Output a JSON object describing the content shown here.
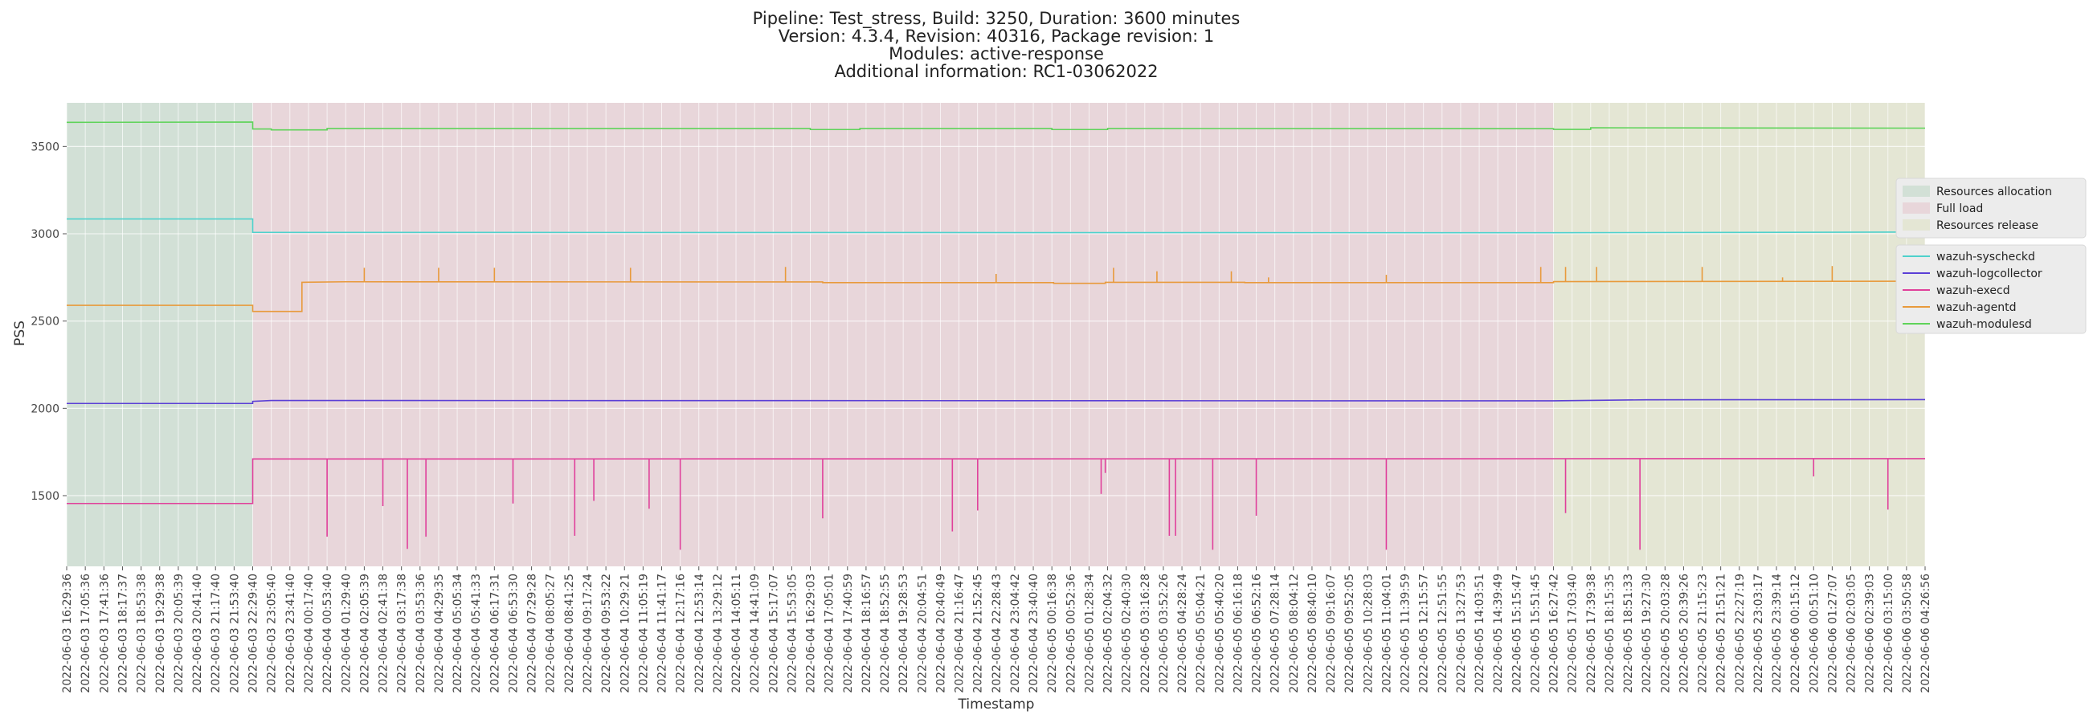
{
  "chart_data": {
    "type": "line",
    "title": [
      "Pipeline: Test_stress, Build: 3250, Duration: 3600 minutes",
      "Version: 4.3.4, Revision: 40316, Package revision: 1",
      "Modules: active-response",
      "Additional information: RC1-03062022"
    ],
    "xlabel": "Timestamp",
    "ylabel": "PSS",
    "ylim": [
      1095,
      3750
    ],
    "yticks": [
      1500,
      2000,
      2500,
      3000,
      3500
    ],
    "grid": true,
    "legend_placement": "right",
    "x_ticks": [
      "2022-06-03 16:29:36",
      "2022-06-03 17:05:36",
      "2022-06-03 17:41:36",
      "2022-06-03 18:17:37",
      "2022-06-03 18:53:38",
      "2022-06-03 19:29:38",
      "2022-06-03 20:05:39",
      "2022-06-03 20:41:40",
      "2022-06-03 21:17:40",
      "2022-06-03 21:53:40",
      "2022-06-03 22:29:40",
      "2022-06-03 23:05:40",
      "2022-06-03 23:41:40",
      "2022-06-04 00:17:40",
      "2022-06-04 00:53:40",
      "2022-06-04 01:29:40",
      "2022-06-04 02:05:39",
      "2022-06-04 02:41:38",
      "2022-06-04 03:17:38",
      "2022-06-04 03:53:36",
      "2022-06-04 04:29:35",
      "2022-06-04 05:05:34",
      "2022-06-04 05:41:33",
      "2022-06-04 06:17:31",
      "2022-06-04 06:53:30",
      "2022-06-04 07:29:28",
      "2022-06-04 08:05:27",
      "2022-06-04 08:41:25",
      "2022-06-04 09:17:24",
      "2022-06-04 09:53:22",
      "2022-06-04 10:29:21",
      "2022-06-04 11:05:19",
      "2022-06-04 11:41:17",
      "2022-06-04 12:17:16",
      "2022-06-04 12:53:14",
      "2022-06-04 13:29:12",
      "2022-06-04 14:05:11",
      "2022-06-04 14:41:09",
      "2022-06-04 15:17:07",
      "2022-06-04 15:53:05",
      "2022-06-04 16:29:03",
      "2022-06-04 17:05:01",
      "2022-06-04 17:40:59",
      "2022-06-04 18:16:57",
      "2022-06-04 18:52:55",
      "2022-06-04 19:28:53",
      "2022-06-04 20:04:51",
      "2022-06-04 20:40:49",
      "2022-06-04 21:16:47",
      "2022-06-04 21:52:45",
      "2022-06-04 22:28:43",
      "2022-06-04 23:04:42",
      "2022-06-04 23:40:40",
      "2022-06-05 00:16:38",
      "2022-06-05 00:52:36",
      "2022-06-05 01:28:34",
      "2022-06-05 02:04:32",
      "2022-06-05 02:40:30",
      "2022-06-05 03:16:28",
      "2022-06-05 03:52:26",
      "2022-06-05 04:28:24",
      "2022-06-05 05:04:21",
      "2022-06-05 05:40:20",
      "2022-06-05 06:16:18",
      "2022-06-05 06:52:16",
      "2022-06-05 07:28:14",
      "2022-06-05 08:04:12",
      "2022-06-05 08:40:10",
      "2022-06-05 09:16:07",
      "2022-06-05 09:52:05",
      "2022-06-05 10:28:03",
      "2022-06-05 11:04:01",
      "2022-06-05 11:39:59",
      "2022-06-05 12:15:57",
      "2022-06-05 12:51:55",
      "2022-06-05 13:27:53",
      "2022-06-05 14:03:51",
      "2022-06-05 14:39:49",
      "2022-06-05 15:15:47",
      "2022-06-05 15:51:45",
      "2022-06-05 16:27:42",
      "2022-06-05 17:03:40",
      "2022-06-05 17:39:38",
      "2022-06-05 18:15:35",
      "2022-06-05 18:51:33",
      "2022-06-05 19:27:30",
      "2022-06-05 20:03:28",
      "2022-06-05 20:39:26",
      "2022-06-05 21:15:23",
      "2022-06-05 21:51:21",
      "2022-06-05 22:27:19",
      "2022-06-05 23:03:17",
      "2022-06-05 23:39:14",
      "2022-06-06 00:15:12",
      "2022-06-06 00:51:10",
      "2022-06-06 01:27:07",
      "2022-06-06 02:03:05",
      "2022-06-06 02:39:03",
      "2022-06-06 03:15:00",
      "2022-06-06 03:50:58",
      "2022-06-06 04:26:56"
    ],
    "phases": [
      {
        "name": "Resources allocation",
        "start": "2022-06-03 16:29:36",
        "end": "2022-06-03 22:29:40",
        "color": "#d2e0d6"
      },
      {
        "name": "Full load",
        "start": "2022-06-03 22:29:40",
        "end": "2022-06-05 16:27:42",
        "color": "#e8d6da"
      },
      {
        "name": "Resources release",
        "start": "2022-06-05 16:27:42",
        "end": "2022-06-06 04:26:56",
        "color": "#e4e6d4"
      }
    ],
    "series": [
      {
        "name": "wazuh-syscheckd",
        "color": "#4fd1cc",
        "points": [
          [
            "2022-06-03 16:29:36",
            3085
          ],
          [
            "2022-06-03 22:29:40",
            3085
          ],
          [
            "2022-06-03 22:29:41",
            3008
          ],
          [
            "2022-06-05 16:27:42",
            3006
          ],
          [
            "2022-06-06 04:26:56",
            3010
          ]
        ],
        "spikes": []
      },
      {
        "name": "wazuh-logcollector",
        "color": "#5b3fd6",
        "points": [
          [
            "2022-06-03 16:29:36",
            2028
          ],
          [
            "2022-06-03 22:29:40",
            2028
          ],
          [
            "2022-06-03 22:29:41",
            2040
          ],
          [
            "2022-06-03 23:05:40",
            2045
          ],
          [
            "2022-06-05 16:27:42",
            2043
          ],
          [
            "2022-06-05 19:27:30",
            2049
          ],
          [
            "2022-06-06 04:26:56",
            2050
          ]
        ],
        "spikes": []
      },
      {
        "name": "wazuh-execd",
        "color": "#e0409b",
        "points": [
          [
            "2022-06-03 16:29:36",
            1455
          ],
          [
            "2022-06-03 22:29:40",
            1455
          ],
          [
            "2022-06-03 22:29:41",
            1710
          ],
          [
            "2022-06-06 04:26:56",
            1712
          ]
        ],
        "spikes": [
          [
            "2022-06-04 00:53:40",
            1265
          ],
          [
            "2022-06-04 02:41:38",
            1440
          ],
          [
            "2022-06-04 03:29:00",
            1195
          ],
          [
            "2022-06-04 04:05:00",
            1265
          ],
          [
            "2022-06-04 06:53:30",
            1455
          ],
          [
            "2022-06-04 08:53:00",
            1270
          ],
          [
            "2022-06-04 09:30:00",
            1470
          ],
          [
            "2022-06-04 11:17:00",
            1425
          ],
          [
            "2022-06-04 12:17:16",
            1190
          ],
          [
            "2022-06-04 16:53:00",
            1370
          ],
          [
            "2022-06-04 21:04:00",
            1295
          ],
          [
            "2022-06-04 21:53:00",
            1415
          ],
          [
            "2022-06-05 01:52:00",
            1510
          ],
          [
            "2022-06-05 02:00:00",
            1630
          ],
          [
            "2022-06-05 04:04:00",
            1270
          ],
          [
            "2022-06-05 04:16:00",
            1270
          ],
          [
            "2022-06-05 05:28:00",
            1190
          ],
          [
            "2022-06-05 06:52:16",
            1385
          ],
          [
            "2022-06-05 11:04:01",
            1190
          ],
          [
            "2022-06-05 16:51:00",
            1400
          ],
          [
            "2022-06-05 19:15:00",
            1190
          ],
          [
            "2022-06-06 00:51:10",
            1610
          ],
          [
            "2022-06-06 03:15:00",
            1420
          ]
        ]
      },
      {
        "name": "wazuh-agentd",
        "color": "#e89a3c",
        "points": [
          [
            "2022-06-03 16:29:36",
            2590
          ],
          [
            "2022-06-03 22:29:40",
            2590
          ],
          [
            "2022-06-03 22:29:41",
            2555
          ],
          [
            "2022-06-04 00:05:00",
            2555
          ],
          [
            "2022-06-04 00:05:01",
            2722
          ],
          [
            "2022-06-04 01:29:40",
            2725
          ],
          [
            "2022-06-04 16:53:00",
            2724
          ],
          [
            "2022-06-04 16:53:01",
            2720
          ],
          [
            "2022-06-05 00:20:00",
            2720
          ],
          [
            "2022-06-05 00:20:01",
            2716
          ],
          [
            "2022-06-05 02:00:00",
            2716
          ],
          [
            "2022-06-05 02:00:01",
            2722
          ],
          [
            "2022-06-05 06:30:00",
            2722
          ],
          [
            "2022-06-05 06:30:01",
            2720
          ],
          [
            "2022-06-05 16:27:42",
            2720
          ],
          [
            "2022-06-05 16:27:43",
            2726
          ],
          [
            "2022-06-06 04:26:56",
            2728
          ]
        ],
        "spikes": [
          [
            "2022-06-04 02:05:39",
            2805
          ],
          [
            "2022-06-04 04:29:35",
            2805
          ],
          [
            "2022-06-04 06:17:31",
            2805
          ],
          [
            "2022-06-04 10:41:00",
            2805
          ],
          [
            "2022-06-04 15:41:00",
            2810
          ],
          [
            "2022-06-04 22:28:43",
            2770
          ],
          [
            "2022-06-05 02:16:00",
            2805
          ],
          [
            "2022-06-05 03:40:00",
            2785
          ],
          [
            "2022-06-05 06:04:00",
            2785
          ],
          [
            "2022-06-05 07:16:00",
            2750
          ],
          [
            "2022-06-05 11:04:01",
            2765
          ],
          [
            "2022-06-05 16:03:00",
            2810
          ],
          [
            "2022-06-05 16:51:00",
            2810
          ],
          [
            "2022-06-05 17:51:00",
            2810
          ],
          [
            "2022-06-05 21:15:23",
            2810
          ],
          [
            "2022-06-05 23:51:00",
            2750
          ],
          [
            "2022-06-06 01:27:07",
            2815
          ]
        ]
      },
      {
        "name": "wazuh-modulesd",
        "color": "#5fd35a",
        "points": [
          [
            "2022-06-03 16:29:36",
            3638
          ],
          [
            "2022-06-03 22:29:40",
            3640
          ],
          [
            "2022-06-03 22:29:41",
            3600
          ],
          [
            "2022-06-03 23:05:40",
            3600
          ],
          [
            "2022-06-03 23:05:41",
            3595
          ],
          [
            "2022-06-04 00:53:40",
            3595
          ],
          [
            "2022-06-04 00:53:41",
            3603
          ],
          [
            "2022-06-04 16:29:03",
            3603
          ],
          [
            "2022-06-04 16:29:04",
            3597
          ],
          [
            "2022-06-04 18:05:00",
            3597
          ],
          [
            "2022-06-04 18:05:01",
            3603
          ],
          [
            "2022-06-05 00:16:38",
            3603
          ],
          [
            "2022-06-05 00:16:39",
            3597
          ],
          [
            "2022-06-05 02:04:32",
            3597
          ],
          [
            "2022-06-05 02:04:33",
            3603
          ],
          [
            "2022-06-05 16:27:42",
            3602
          ],
          [
            "2022-06-05 16:27:43",
            3598
          ],
          [
            "2022-06-05 17:39:38",
            3598
          ],
          [
            "2022-06-05 17:39:39",
            3607
          ],
          [
            "2022-06-06 04:26:56",
            3605
          ]
        ],
        "spikes": []
      }
    ]
  }
}
